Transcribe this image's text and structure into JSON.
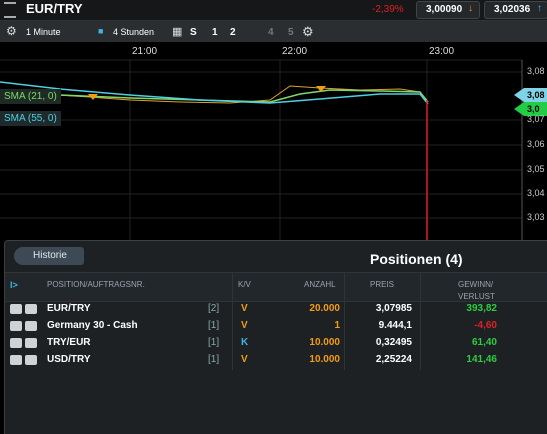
{
  "header": {
    "symbol": "EUR/TRY",
    "change": "-2,39%",
    "sell": "3,00090",
    "buy": "3,02036"
  },
  "toolbar": {
    "interval": "1 Minute",
    "range": "4 Stunden",
    "buttons": [
      "S",
      "1",
      "2",
      "4",
      "5"
    ]
  },
  "chart": {
    "times": [
      "21:00",
      "22:00",
      "23:00"
    ],
    "price_labels": [
      "3,08",
      "3,07",
      "3,06",
      "3,05",
      "3,04",
      "3,03"
    ],
    "badges": [
      "3,08",
      "3,0"
    ],
    "indicators": [
      "SMA (21, 0)",
      "SMA (55, 0)"
    ]
  },
  "panel": {
    "back": "Historie",
    "title": "Positionen (4)",
    "columns": [
      "I>",
      "POSITION/AUFTRAGSNR.",
      "K/V",
      "ANZAHL",
      "PREIS",
      "GEWINN/",
      "VERLUST"
    ],
    "rows": [
      [
        "EUR/TRY",
        "[2]",
        "V",
        "20.000",
        "3,07985",
        "393,82"
      ],
      [
        "Germany 30 - Cash",
        "[1]",
        "V",
        "1",
        "9.444,1",
        "-4,60"
      ],
      [
        "TRY/EUR",
        "[1]",
        "K",
        "10.000",
        "0,32495",
        "61,40"
      ],
      [
        "USD/TRY",
        "[1]",
        "V",
        "10.000",
        "2,25224",
        "141,46"
      ]
    ]
  }
}
